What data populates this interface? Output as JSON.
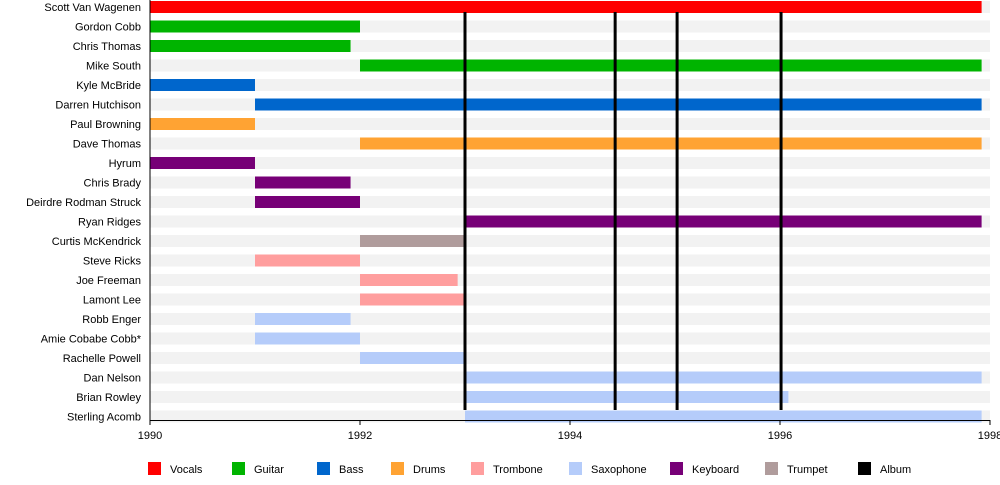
{
  "chart_data": {
    "type": "timeline",
    "title": "",
    "xlim": [
      1990,
      1998
    ],
    "x_ticks": [
      "1990",
      "1992",
      "1994",
      "1996",
      "1998"
    ],
    "categories": {
      "Vocals": "#ff0000",
      "Guitar": "#00b400",
      "Bass": "#0066cc",
      "Drums": "#ffa333",
      "Trombone": "#ff9e9e",
      "Saxophone": "#b5ccfa",
      "Keyboard": "#770077",
      "Trumpet": "#b09c9c",
      "Album": "#000000"
    },
    "legend_order": [
      "Vocals",
      "Guitar",
      "Bass",
      "Drums",
      "Trombone",
      "Saxophone",
      "Keyboard",
      "Trumpet",
      "Album"
    ],
    "legend_placement": "bottom",
    "members": [
      {
        "name": "Scott Van Wagenen",
        "role": "Vocals",
        "start": 1990,
        "end": 1997.92
      },
      {
        "name": "Gordon Cobb",
        "role": "Guitar",
        "start": 1990,
        "end": 1992
      },
      {
        "name": "Chris Thomas",
        "role": "Guitar",
        "start": 1990,
        "end": 1991.91
      },
      {
        "name": "Mike South",
        "role": "Guitar",
        "start": 1992,
        "end": 1997.92
      },
      {
        "name": "Kyle McBride",
        "role": "Bass",
        "start": 1990,
        "end": 1991
      },
      {
        "name": "Darren Hutchison",
        "role": "Bass",
        "start": 1991,
        "end": 1997.92
      },
      {
        "name": "Paul Browning",
        "role": "Drums",
        "start": 1990,
        "end": 1991
      },
      {
        "name": "Dave Thomas",
        "role": "Drums",
        "start": 1992,
        "end": 1997.92
      },
      {
        "name": "Hyrum",
        "role": "Keyboard",
        "start": 1990,
        "end": 1991
      },
      {
        "name": "Chris Brady",
        "role": "Keyboard",
        "start": 1991,
        "end": 1991.91
      },
      {
        "name": "Deirdre Rodman Struck",
        "role": "Keyboard",
        "start": 1991,
        "end": 1992
      },
      {
        "name": "Ryan Ridges",
        "role": "Keyboard",
        "start": 1993,
        "end": 1997.92
      },
      {
        "name": "Curtis McKendrick",
        "role": "Trumpet",
        "start": 1992,
        "end": 1993
      },
      {
        "name": "Steve Ricks",
        "role": "Trombone",
        "start": 1991,
        "end": 1992
      },
      {
        "name": "Joe Freeman",
        "role": "Trombone",
        "start": 1992,
        "end": 1992.93
      },
      {
        "name": "Lamont Lee",
        "role": "Trombone",
        "start": 1992,
        "end": 1993
      },
      {
        "name": "Robb Enger",
        "role": "Saxophone",
        "start": 1991,
        "end": 1991.91
      },
      {
        "name": "Amie Cobabe Cobb*",
        "role": "Saxophone",
        "start": 1991,
        "end": 1992
      },
      {
        "name": "Rachelle Powell",
        "role": "Saxophone",
        "start": 1992,
        "end": 1993
      },
      {
        "name": "Dan Nelson",
        "role": "Saxophone",
        "start": 1993,
        "end": 1997.92
      },
      {
        "name": "Brian Rowley",
        "role": "Saxophone",
        "start": 1993,
        "end": 1996.08
      },
      {
        "name": "Sterling Acomb",
        "role": "Saxophone",
        "start": 1993,
        "end": 1997.92
      }
    ],
    "albums": [
      1993.0,
      1994.43,
      1995.02,
      1996.01
    ]
  }
}
